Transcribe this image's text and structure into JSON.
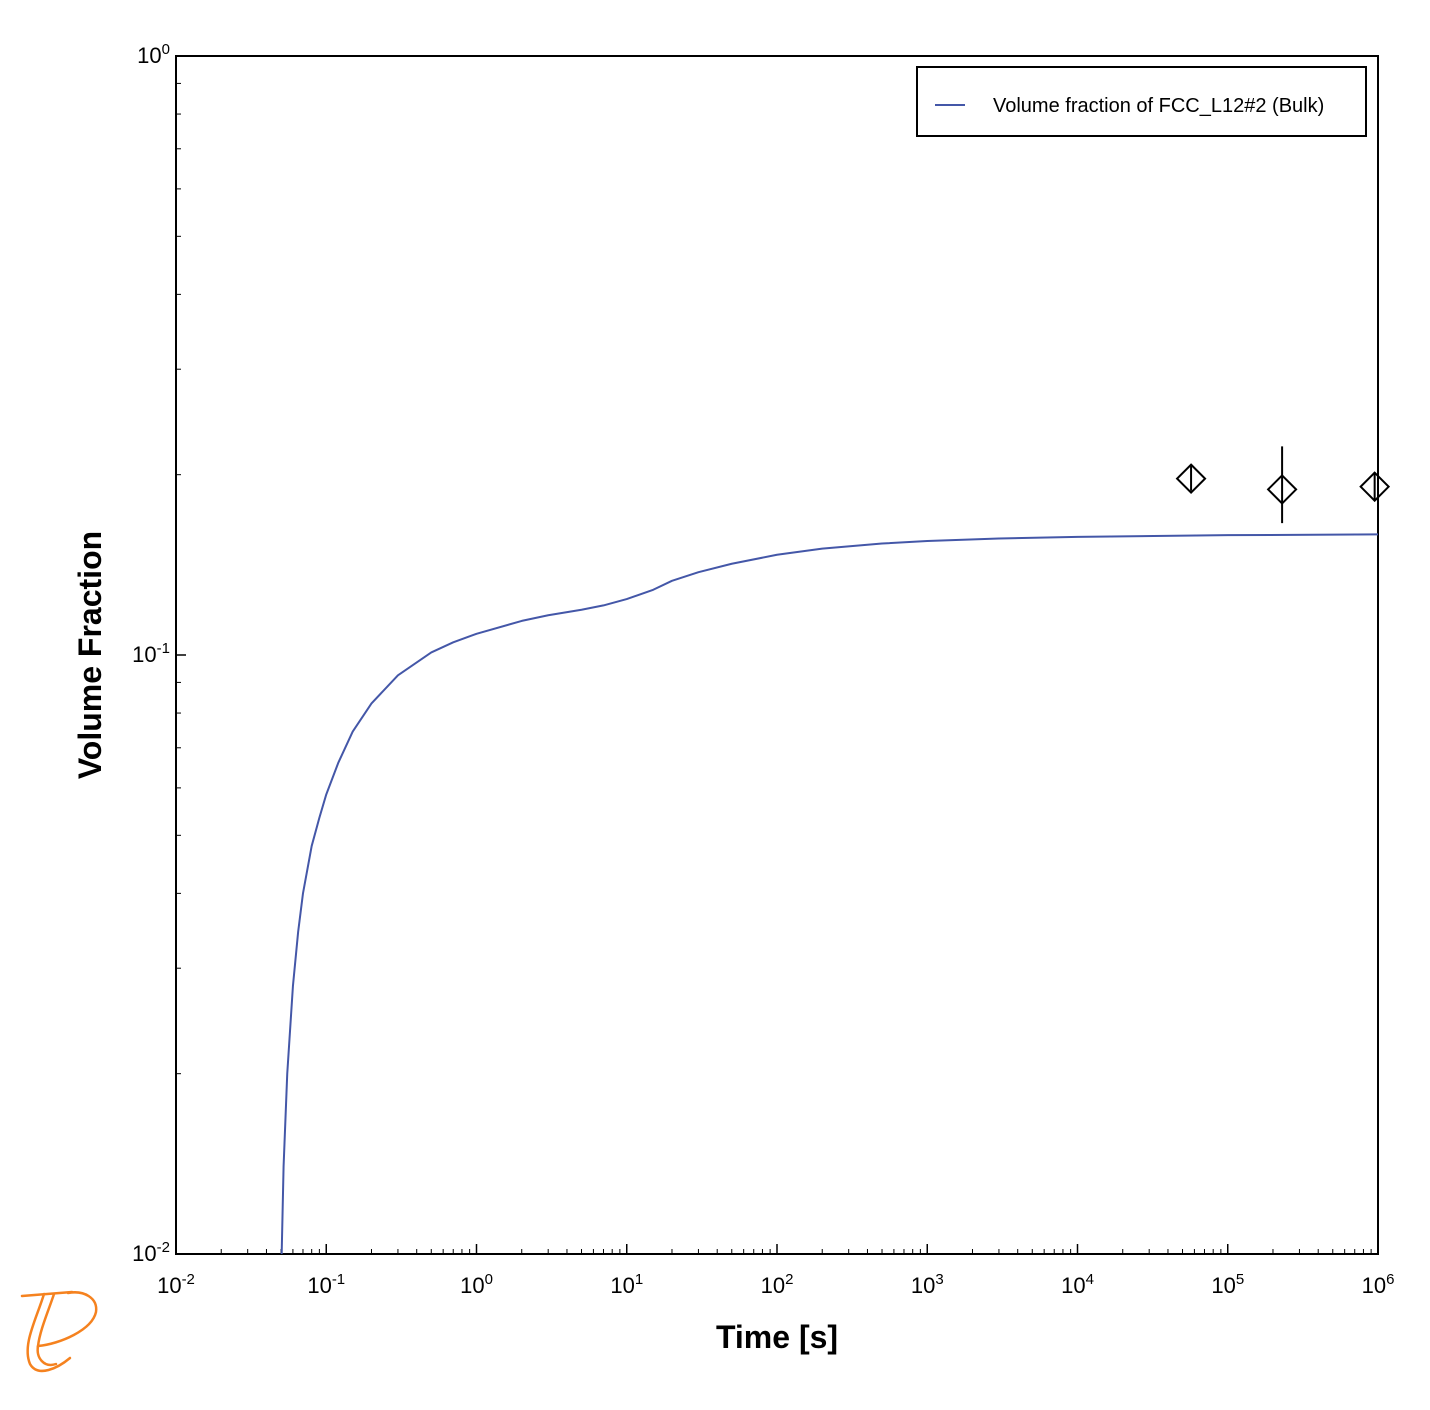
{
  "chart_data": {
    "type": "line",
    "xlabel": "Time [s]",
    "ylabel": "Volume Fraction",
    "xscale": "log",
    "yscale": "log",
    "xlim": [
      0.01,
      1000000
    ],
    "ylim": [
      0.01,
      1
    ],
    "x_tick_labels": [
      {
        "base": "10",
        "exp": "-2"
      },
      {
        "base": "10",
        "exp": "-1"
      },
      {
        "base": "10",
        "exp": "0"
      },
      {
        "base": "10",
        "exp": "1"
      },
      {
        "base": "10",
        "exp": "2"
      },
      {
        "base": "10",
        "exp": "3"
      },
      {
        "base": "10",
        "exp": "4"
      },
      {
        "base": "10",
        "exp": "5"
      },
      {
        "base": "10",
        "exp": "6"
      }
    ],
    "y_tick_labels": [
      {
        "base": "10",
        "exp": "-2"
      },
      {
        "base": "10",
        "exp": "-1"
      },
      {
        "base": "10",
        "exp": "0"
      }
    ],
    "legend": {
      "placement": "top-right"
    },
    "series": [
      {
        "name": "Volume fraction of FCC_L12#2 (Bulk)",
        "color": "#4457a8",
        "x": [
          0.0505,
          0.052,
          0.055,
          0.06,
          0.065,
          0.07,
          0.08,
          0.09,
          0.1,
          0.12,
          0.15,
          0.2,
          0.3,
          0.5,
          0.7,
          1,
          2,
          3,
          5,
          7,
          10,
          15,
          20,
          30,
          50,
          100,
          200,
          500,
          1000,
          3000,
          10000,
          100000,
          1000000
        ],
        "y": [
          0.01,
          0.014,
          0.02,
          0.028,
          0.0345,
          0.04,
          0.048,
          0.0535,
          0.0585,
          0.066,
          0.0745,
          0.083,
          0.0925,
          0.101,
          0.105,
          0.1085,
          0.114,
          0.1165,
          0.119,
          0.121,
          0.124,
          0.1285,
          0.133,
          0.1375,
          0.142,
          0.147,
          0.1505,
          0.1535,
          0.155,
          0.1565,
          0.1575,
          0.1585,
          0.159
        ]
      }
    ],
    "experimental": {
      "marker": "diamond",
      "color": "#000000",
      "points": [
        {
          "x": 57000,
          "y": 0.197,
          "ylow": 0.188,
          "yhigh": 0.207
        },
        {
          "x": 230000,
          "y": 0.189,
          "ylow": 0.166,
          "yhigh": 0.223
        },
        {
          "x": 950000,
          "y": 0.191,
          "ylow": 0.181,
          "yhigh": 0.202
        }
      ]
    },
    "grid": false
  },
  "logo": {
    "name": "thermo-calc-logo",
    "color": "#f5821f"
  }
}
